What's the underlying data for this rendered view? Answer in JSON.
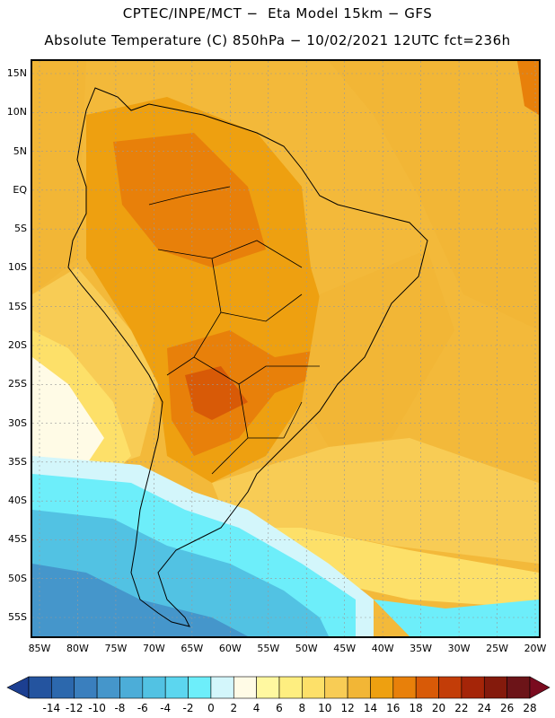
{
  "header": {
    "line1": "CPTEC/INPE/MCT −  Eta Model 15km − GFS",
    "line2": "Absolute Temperature (C) 850hPa − 10/02/2021 12UTC fct=236h"
  },
  "axes": {
    "lat_labels": [
      "15N",
      "10N",
      "5N",
      "EQ",
      "5S",
      "10S",
      "15S",
      "20S",
      "25S",
      "30S",
      "35S",
      "40S",
      "45S",
      "50S",
      "55S"
    ],
    "lon_labels": [
      "85W",
      "80W",
      "75W",
      "70W",
      "65W",
      "60W",
      "55W",
      "50W",
      "45W",
      "40W",
      "35W",
      "30W",
      "25W",
      "20W"
    ]
  },
  "colorbar": {
    "labels": [
      "-14",
      "-12",
      "-10",
      "-8",
      "-6",
      "-4",
      "-2",
      "0",
      "2",
      "4",
      "6",
      "8",
      "10",
      "12",
      "14",
      "16",
      "18",
      "20",
      "22",
      "24",
      "26",
      "28"
    ],
    "colors": [
      "#1c3f91",
      "#24549f",
      "#2c68ad",
      "#3a7fbe",
      "#4596cb",
      "#4cadd8",
      "#52c2e3",
      "#5cd6ef",
      "#6deefa",
      "#d3f6fb",
      "#fffbe6",
      "#fff8a0",
      "#feee80",
      "#fde069",
      "#f8cc55",
      "#f2b636",
      "#eea010",
      "#e8800a",
      "#d85a07",
      "#c33d08",
      "#a52508",
      "#841a0c",
      "#6c1418",
      "#7a0b1f"
    ]
  },
  "map_colors": {
    "ocean_warm": "#f3b93a",
    "tropical": "#eea010",
    "hot": "#e8800a",
    "very_hot": "#d85a07",
    "mild": "#f8cc55",
    "cool_yellow": "#fde069",
    "pale_yellow": "#fff8a0",
    "cream": "#fffbe6",
    "ice": "#d3f6fb",
    "cyan": "#6deefa",
    "sky": "#52c2e3",
    "blue": "#4596cb"
  }
}
